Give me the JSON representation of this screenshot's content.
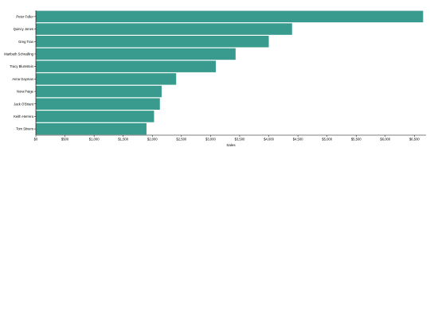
{
  "chart_data": {
    "type": "bar",
    "orientation": "horizontal",
    "categories": [
      "Peter Fuller",
      "Quincy Jones",
      "Greg Tran",
      "Maribeth Schnalling",
      "Tracy Blumstein",
      "Anna Gayman",
      "Nora Paige",
      "Jack O'Briant",
      "Keith Herrera",
      "Tom Stivers"
    ],
    "values": [
      6650,
      4400,
      4000,
      3430,
      3090,
      2410,
      2160,
      2130,
      2030,
      1900
    ],
    "xlabel": "Sales",
    "ylabel": "",
    "xlim": [
      0,
      6700
    ],
    "x_ticks": [
      0,
      500,
      1000,
      1500,
      2000,
      2500,
      3000,
      3500,
      4000,
      4500,
      5000,
      5500,
      6000,
      6500
    ],
    "x_tick_labels": [
      "$0",
      "$500",
      "$1,000",
      "$1,500",
      "$2,000",
      "$2,500",
      "$3,000",
      "$3,500",
      "$4,000",
      "$4,500",
      "$5,000",
      "$5,500",
      "$6,000",
      "$6,500"
    ],
    "grid": false,
    "legend": "none",
    "bar_color": "#389b8e"
  }
}
